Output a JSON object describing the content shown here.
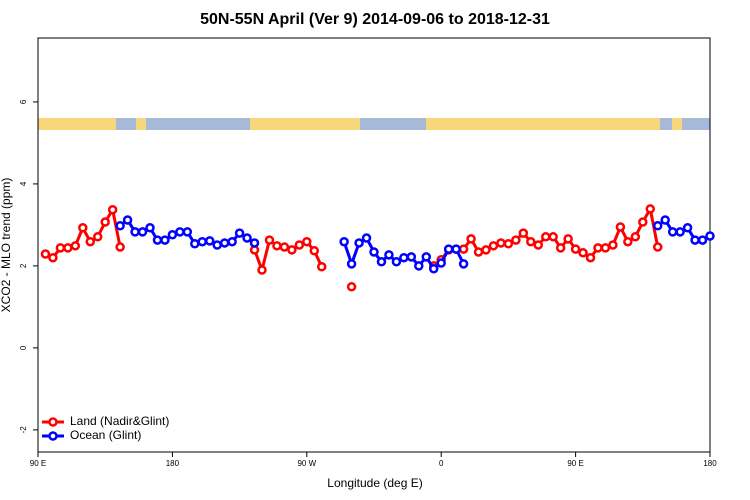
{
  "chart_data": {
    "type": "line",
    "title": "50N-55N April (Ver 9)   2014-09-06 to 2018-12-31",
    "x_label": "Longitude (deg E)",
    "y_label": "XCO2 - MLO trend (ppm)",
    "x": [
      95,
      100,
      105,
      110,
      115,
      120,
      125,
      130,
      135,
      140,
      145,
      150,
      155,
      160,
      165,
      170,
      175,
      180,
      185,
      190,
      195,
      200,
      205,
      210,
      215,
      220,
      225,
      230,
      235,
      240,
      245,
      250,
      255,
      260,
      265,
      270,
      275,
      280,
      285,
      290,
      295,
      300,
      305,
      310,
      315,
      320,
      325,
      330,
      335,
      340,
      345,
      350,
      355,
      360,
      365,
      370,
      375,
      380,
      385,
      390,
      395,
      400,
      405,
      410,
      415,
      420,
      425,
      430,
      435,
      440,
      445,
      450,
      455,
      460,
      465,
      470,
      475,
      480,
      485,
      490,
      495,
      500,
      505,
      510,
      515,
      520,
      525,
      530,
      535,
      540
    ],
    "series": [
      {
        "name": "Land (Nadir&Glint)",
        "color": "#ff0000",
        "values": [
          2.29,
          2.2,
          2.44,
          2.44,
          2.49,
          2.93,
          2.59,
          2.71,
          3.07,
          3.37,
          2.46,
          null,
          null,
          null,
          null,
          null,
          null,
          null,
          null,
          null,
          null,
          null,
          null,
          null,
          null,
          null,
          null,
          null,
          2.39,
          1.9,
          2.63,
          2.49,
          2.46,
          2.39,
          2.51,
          2.59,
          2.37,
          1.98,
          null,
          null,
          null,
          1.49,
          null,
          null,
          null,
          null,
          null,
          null,
          null,
          null,
          null,
          null,
          2.0,
          2.15,
          2.39,
          2.41,
          2.41,
          2.66,
          2.34,
          2.39,
          2.49,
          2.56,
          2.54,
          2.63,
          2.8,
          2.59,
          2.51,
          2.71,
          2.71,
          2.44,
          2.66,
          2.41,
          2.32,
          2.2,
          2.44,
          2.44,
          2.51,
          2.95,
          2.59,
          2.71,
          3.07,
          3.39,
          2.46,
          null,
          null,
          null,
          null,
          null,
          null,
          null
        ]
      },
      {
        "name": "Ocean (Glint)",
        "color": "#0000ff",
        "values": [
          null,
          null,
          null,
          null,
          null,
          null,
          null,
          null,
          null,
          null,
          2.98,
          3.12,
          2.83,
          2.83,
          2.93,
          2.63,
          2.63,
          2.76,
          2.83,
          2.83,
          2.54,
          2.59,
          2.61,
          2.51,
          2.56,
          2.59,
          2.8,
          2.68,
          2.56,
          null,
          null,
          null,
          null,
          null,
          null,
          null,
          null,
          null,
          null,
          null,
          2.59,
          2.05,
          2.56,
          2.68,
          2.34,
          2.1,
          2.27,
          2.1,
          2.2,
          2.22,
          2.0,
          2.22,
          1.93,
          2.07,
          2.41,
          2.41,
          2.05,
          null,
          null,
          null,
          null,
          null,
          null,
          null,
          null,
          null,
          null,
          null,
          null,
          null,
          null,
          null,
          null,
          null,
          null,
          null,
          null,
          null,
          null,
          null,
          null,
          null,
          2.98,
          3.12,
          2.83,
          2.83,
          2.93,
          2.63,
          2.63,
          2.73
        ]
      }
    ],
    "xlim": [
      90,
      540
    ],
    "ylim": [
      -2.54,
      7.56
    ],
    "xticks": [
      {
        "value": 90,
        "label": "90 E"
      },
      {
        "value": 180,
        "label": "180"
      },
      {
        "value": 270,
        "label": "90 W"
      },
      {
        "value": 360,
        "label": "0"
      },
      {
        "value": 450,
        "label": "90 E"
      },
      {
        "value": 540,
        "label": "180"
      }
    ],
    "yticks": [
      -2,
      0,
      2,
      4,
      6
    ],
    "legend": "bottom-left"
  }
}
